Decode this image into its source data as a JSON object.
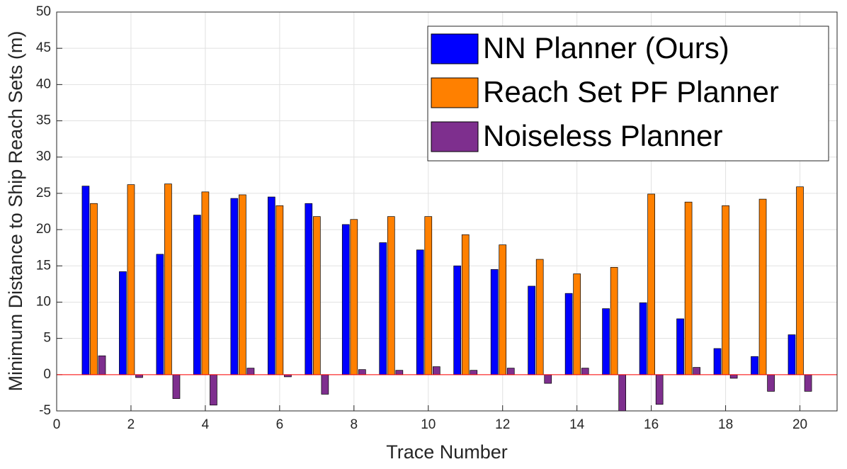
{
  "chart_data": {
    "type": "bar",
    "x_label": "Trace Number",
    "y_label": "Minimum Distance to Ship Reach Sets (m)",
    "x": [
      1,
      2,
      3,
      4,
      5,
      6,
      7,
      8,
      9,
      10,
      11,
      12,
      13,
      14,
      15,
      16,
      17,
      18,
      19,
      20
    ],
    "series": [
      {
        "name": "NN Planner (Ours)",
        "color": "#0000ff",
        "values": [
          26.0,
          14.2,
          16.6,
          22.0,
          24.3,
          24.5,
          23.6,
          20.7,
          18.2,
          17.2,
          15.0,
          14.5,
          12.2,
          11.2,
          9.1,
          9.9,
          7.7,
          3.6,
          2.5,
          5.5
        ]
      },
      {
        "name": "Reach Set PF Planner",
        "color": "#ff8000",
        "values": [
          23.6,
          26.2,
          26.3,
          25.2,
          24.8,
          23.3,
          21.8,
          21.4,
          21.8,
          21.8,
          19.3,
          17.9,
          15.9,
          13.9,
          14.8,
          24.9,
          23.8,
          23.3,
          24.2,
          25.9
        ]
      },
      {
        "name": "Noiseless Planner",
        "color": "#7e2f8e",
        "values": [
          2.6,
          -0.4,
          -3.3,
          -4.2,
          0.9,
          -0.3,
          -2.7,
          0.7,
          0.6,
          1.1,
          0.6,
          0.9,
          -1.2,
          0.9,
          -5.0,
          -4.1,
          1.0,
          -0.5,
          -2.3,
          -2.3
        ]
      }
    ],
    "xlim": [
      0,
      21
    ],
    "xticks": [
      0,
      2,
      4,
      6,
      8,
      10,
      12,
      14,
      16,
      18,
      20
    ],
    "ylim": [
      -5,
      50
    ],
    "yticks": [
      -5,
      0,
      5,
      10,
      15,
      20,
      25,
      30,
      35,
      40,
      45,
      50
    ],
    "grid": true,
    "legend": "northeast",
    "baseline_color": "#ff0000"
  }
}
